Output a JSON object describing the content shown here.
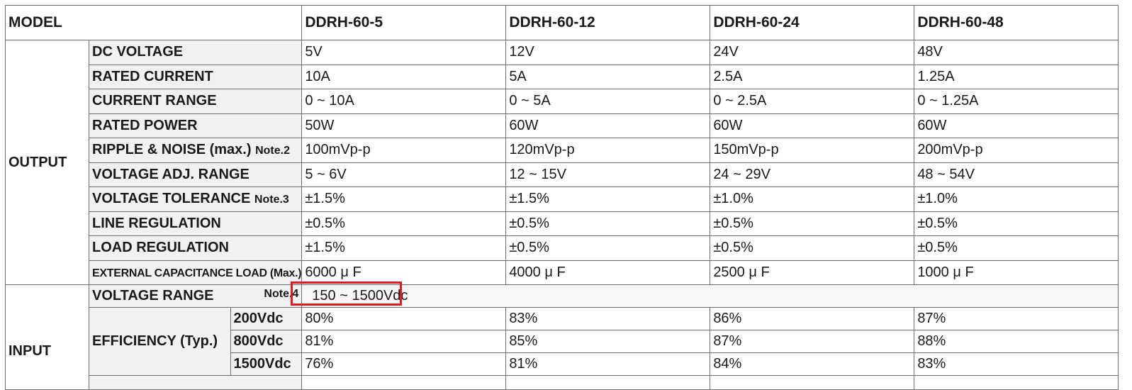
{
  "header": {
    "model_label": "MODEL",
    "models": [
      "DDRH-60-5",
      "DDRH-60-12",
      "DDRH-60-24",
      "DDRH-60-48"
    ]
  },
  "output": {
    "group_label": "OUTPUT",
    "rows": [
      {
        "label": "DC VOLTAGE",
        "note": "",
        "values": [
          "5V",
          "12V",
          "24V",
          "48V"
        ]
      },
      {
        "label": "RATED CURRENT",
        "note": "",
        "values": [
          "10A",
          "5A",
          "2.5A",
          "1.25A"
        ]
      },
      {
        "label": "CURRENT RANGE",
        "note": "",
        "values": [
          "0 ~ 10A",
          "0 ~ 5A",
          "0 ~ 2.5A",
          "0 ~ 1.25A"
        ]
      },
      {
        "label": "RATED POWER",
        "note": "",
        "values": [
          "50W",
          "60W",
          "60W",
          "60W"
        ]
      },
      {
        "label": "RIPPLE & NOISE (max.)",
        "note": "Note.2",
        "values": [
          "100mVp-p",
          "120mVp-p",
          "150mVp-p",
          "200mVp-p"
        ]
      },
      {
        "label": "VOLTAGE ADJ. RANGE",
        "note": "",
        "values": [
          "5 ~ 6V",
          "12 ~ 15V",
          "24 ~ 29V",
          "48 ~ 54V"
        ]
      },
      {
        "label": "VOLTAGE TOLERANCE",
        "note": "Note.3",
        "values": [
          "±1.5%",
          "±1.5%",
          "±1.0%",
          "±1.0%"
        ]
      },
      {
        "label": "LINE REGULATION",
        "note": "",
        "values": [
          "±0.5%",
          "±0.5%",
          "±0.5%",
          "±0.5%"
        ]
      },
      {
        "label": "LOAD REGULATION",
        "note": "",
        "values": [
          "±1.5%",
          "±0.5%",
          "±0.5%",
          "±0.5%"
        ]
      },
      {
        "label": "EXTERNAL CAPACITANCE LOAD (Max.)",
        "note": "",
        "values": [
          "6000 μ F",
          "4000 μ F",
          "2500 μ F",
          "1000 μ F"
        ]
      }
    ]
  },
  "input": {
    "group_label": "INPUT",
    "voltage_range": {
      "label": "VOLTAGE RANGE",
      "note": "Note.4",
      "value": "150 ~ 1500Vdc"
    },
    "efficiency": {
      "label": "EFFICIENCY (Typ.)",
      "rows": [
        {
          "condition": "200Vdc",
          "values": [
            "80%",
            "83%",
            "86%",
            "87%"
          ]
        },
        {
          "condition": "800Vdc",
          "values": [
            "81%",
            "85%",
            "87%",
            "88%"
          ]
        },
        {
          "condition": "1500Vdc",
          "values": [
            "76%",
            "81%",
            "84%",
            "83%"
          ]
        }
      ]
    }
  },
  "highlight": {
    "color": "#e0191f"
  }
}
